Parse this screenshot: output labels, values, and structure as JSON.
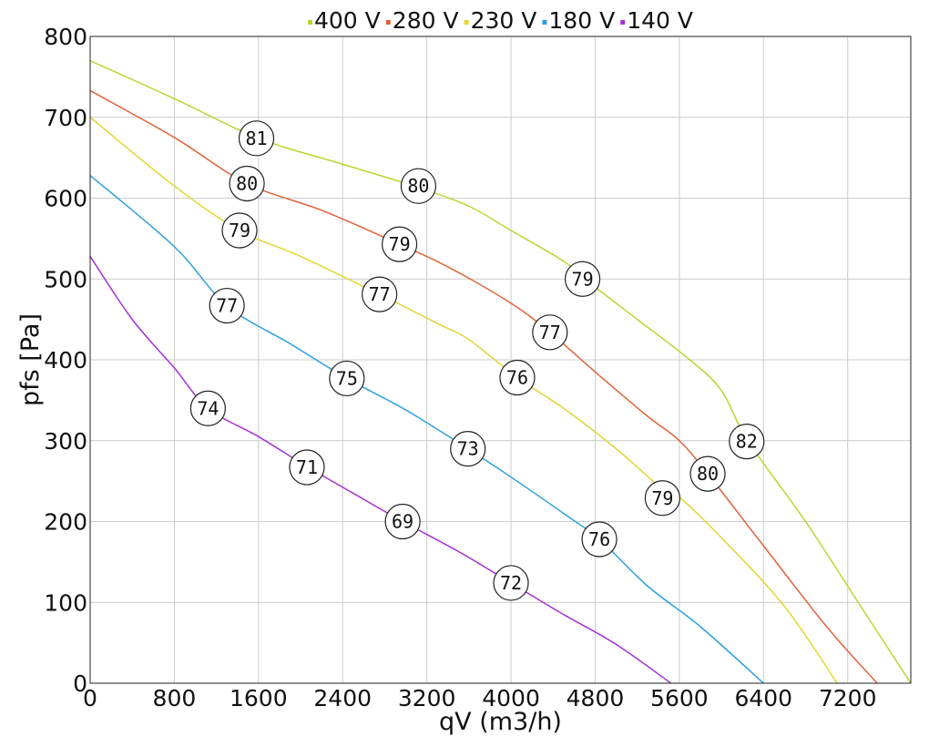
{
  "chart_data": {
    "type": "line",
    "xlabel": "qV (m3/h)",
    "ylabel": "pfs [Pa]",
    "xlim": [
      0,
      7800
    ],
    "ylim": [
      0,
      800
    ],
    "xticks": [
      "0",
      "800",
      "1600",
      "2400",
      "3200",
      "4000",
      "4800",
      "5600",
      "6400",
      "7200"
    ],
    "yticks": [
      "0",
      "100",
      "200",
      "300",
      "400",
      "500",
      "600",
      "700",
      "800"
    ],
    "grid": true,
    "legend_position": "top",
    "series": [
      {
        "name": "400 V",
        "color": "#bcd631",
        "points": [
          [
            0,
            770
          ],
          [
            800,
            723
          ],
          [
            1600,
            674
          ],
          [
            2400,
            642
          ],
          [
            3100,
            614
          ],
          [
            3600,
            590
          ],
          [
            4000,
            560
          ],
          [
            4500,
            522
          ],
          [
            4700,
            500
          ],
          [
            5200,
            450
          ],
          [
            5700,
            400
          ],
          [
            6000,
            362
          ],
          [
            6250,
            300
          ],
          [
            6800,
            200
          ],
          [
            7300,
            100
          ],
          [
            7800,
            0
          ]
        ],
        "markers": [
          {
            "x": 1580,
            "y": 674,
            "label": "81"
          },
          {
            "x": 3120,
            "y": 615,
            "label": "80"
          },
          {
            "x": 4680,
            "y": 500,
            "label": "79"
          },
          {
            "x": 6240,
            "y": 299,
            "label": "82"
          }
        ]
      },
      {
        "name": "280 V",
        "color": "#e0633a",
        "points": [
          [
            0,
            733
          ],
          [
            800,
            675
          ],
          [
            1490,
            618
          ],
          [
            2200,
            585
          ],
          [
            2940,
            543
          ],
          [
            3400,
            515
          ],
          [
            4000,
            470
          ],
          [
            4370,
            434
          ],
          [
            4800,
            385
          ],
          [
            5300,
            330
          ],
          [
            5600,
            300
          ],
          [
            5870,
            259
          ],
          [
            6400,
            170
          ],
          [
            7000,
            70
          ],
          [
            7480,
            0
          ]
        ],
        "markers": [
          {
            "x": 1490,
            "y": 618,
            "label": "80"
          },
          {
            "x": 2940,
            "y": 543,
            "label": "79"
          },
          {
            "x": 4370,
            "y": 434,
            "label": "77"
          },
          {
            "x": 5870,
            "y": 259,
            "label": "80"
          }
        ]
      },
      {
        "name": "230 V",
        "color": "#e3d535",
        "points": [
          [
            0,
            700
          ],
          [
            800,
            615
          ],
          [
            1420,
            560
          ],
          [
            2000,
            528
          ],
          [
            2750,
            481
          ],
          [
            3300,
            445
          ],
          [
            3600,
            425
          ],
          [
            4060,
            378
          ],
          [
            4500,
            340
          ],
          [
            5000,
            290
          ],
          [
            5440,
            240
          ],
          [
            5600,
            230
          ],
          [
            6000,
            180
          ],
          [
            6600,
            95
          ],
          [
            7100,
            0
          ]
        ],
        "markers": [
          {
            "x": 1420,
            "y": 560,
            "label": "79"
          },
          {
            "x": 2750,
            "y": 481,
            "label": "77"
          },
          {
            "x": 4060,
            "y": 378,
            "label": "76"
          },
          {
            "x": 5440,
            "y": 229,
            "label": "79"
          }
        ]
      },
      {
        "name": "180 V",
        "color": "#2d9fdf",
        "points": [
          [
            0,
            628
          ],
          [
            800,
            540
          ],
          [
            1300,
            467
          ],
          [
            1900,
            420
          ],
          [
            2440,
            377
          ],
          [
            3000,
            338
          ],
          [
            3590,
            290
          ],
          [
            4000,
            255
          ],
          [
            4500,
            210
          ],
          [
            4840,
            178
          ],
          [
            5300,
            120
          ],
          [
            5800,
            70
          ],
          [
            6400,
            0
          ]
        ],
        "markers": [
          {
            "x": 1300,
            "y": 467,
            "label": "77"
          },
          {
            "x": 2440,
            "y": 377,
            "label": "75"
          },
          {
            "x": 3590,
            "y": 290,
            "label": "73"
          },
          {
            "x": 4840,
            "y": 178,
            "label": "76"
          }
        ]
      },
      {
        "name": "140 V",
        "color": "#a531d6",
        "points": [
          [
            0,
            528
          ],
          [
            400,
            450
          ],
          [
            800,
            390
          ],
          [
            1120,
            340
          ],
          [
            1600,
            305
          ],
          [
            2060,
            268
          ],
          [
            2500,
            235
          ],
          [
            2970,
            200
          ],
          [
            3500,
            163
          ],
          [
            4000,
            124
          ],
          [
            4500,
            85
          ],
          [
            5000,
            48
          ],
          [
            5520,
            0
          ]
        ],
        "markers": [
          {
            "x": 1120,
            "y": 340,
            "label": "74"
          },
          {
            "x": 2060,
            "y": 267,
            "label": "71"
          },
          {
            "x": 2970,
            "y": 200,
            "label": "69"
          },
          {
            "x": 4000,
            "y": 124,
            "label": "72"
          }
        ]
      }
    ]
  }
}
